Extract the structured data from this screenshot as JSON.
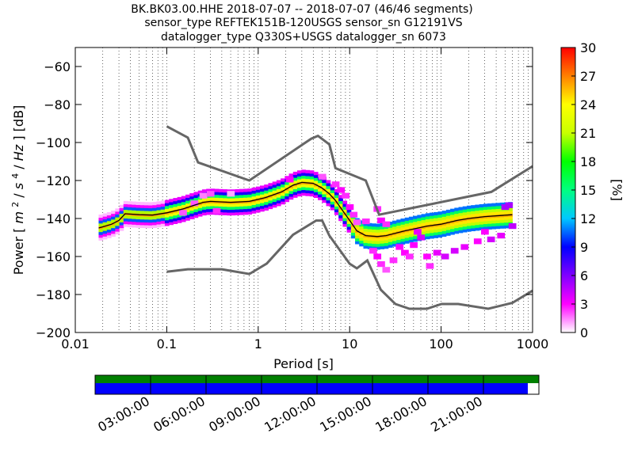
{
  "chart_data": {
    "type": "heatmap",
    "title_lines": [
      "BK.BK03.00.HHE   2018-07-07 -- 2018-07-07  (46/46 segments)",
      "sensor_type REFTEK151B-120USGS sensor_sn G12191VS",
      "datalogger_type Q330S+USGS datalogger_sn 6073"
    ],
    "xlabel": "Period [s]",
    "ylabel_text": "Power",
    "ylabel_unit_parts": [
      "[",
      "m",
      "2",
      "/",
      "s",
      "4",
      "/",
      "Hz",
      "]",
      " [dB]"
    ],
    "xscale": "log",
    "xlim": [
      0.01,
      1000
    ],
    "ylim": [
      -200,
      -50
    ],
    "x_ticks": [
      0.01,
      0.1,
      1,
      10,
      100,
      1000
    ],
    "x_ticklabels": [
      "0.01",
      "0.1",
      "1",
      "10",
      "100",
      "1000"
    ],
    "y_ticks": [
      -200,
      -180,
      -160,
      -140,
      -120,
      -100,
      -80,
      -60
    ],
    "y_ticklabels": [
      "−200",
      "−180",
      "−160",
      "−140",
      "−120",
      "−100",
      "−80",
      "−60"
    ],
    "grid": "dotted vertical at log minor ticks",
    "colorbar": {
      "label": "[%]",
      "range": [
        0,
        30
      ],
      "ticks": [
        0,
        3,
        6,
        9,
        12,
        15,
        18,
        21,
        24,
        27,
        30
      ],
      "ticklabels": [
        "0",
        "3",
        "6",
        "9",
        "12",
        "15",
        "18",
        "21",
        "24",
        "27",
        "30"
      ],
      "colormap": [
        "#ffffff",
        "#ff00ff",
        "#8000ff",
        "#0000ff",
        "#00c8ff",
        "#00ff80",
        "#00ff00",
        "#c8ff00",
        "#ffff00",
        "#ff8000",
        "#ff0000"
      ]
    },
    "noise_model_high": {
      "period": [
        0.1,
        0.17,
        0.22,
        0.8,
        3.8,
        4.5,
        6.0,
        7.0,
        15.0,
        21.0,
        354.0,
        1000.0
      ],
      "power": [
        -91.5,
        -97.4,
        -110.5,
        -120.0,
        -98.0,
        -96.5,
        -101.0,
        -113.5,
        -120.0,
        -138.0,
        -126.0,
        -112.5
      ]
    },
    "noise_model_low": {
      "period": [
        0.1,
        0.17,
        0.4,
        0.8,
        1.24,
        2.4,
        4.3,
        5.0,
        6.0,
        10.0,
        12.0,
        15.6,
        21.9,
        31.6,
        45.0,
        70.0,
        101.0,
        154.0,
        328.0,
        600.0,
        1000.0
      ],
      "power": [
        -168.0,
        -166.7,
        -166.7,
        -169.2,
        -163.7,
        -148.6,
        -141.1,
        -141.1,
        -149.0,
        -163.8,
        -166.2,
        -162.1,
        -177.5,
        -185.0,
        -187.5,
        -187.5,
        -185.0,
        -185.0,
        -187.5,
        -184.4,
        -178.0
      ]
    },
    "median_curve": {
      "period": [
        0.018,
        0.025,
        0.03,
        0.035,
        0.05,
        0.07,
        0.1,
        0.15,
        0.2,
        0.25,
        0.3,
        0.5,
        0.8,
        1.2,
        1.8,
        2.4,
        3.0,
        4.0,
        5.0,
        6.0,
        7.0,
        8.0,
        10.0,
        12.0,
        15.0,
        20.0,
        25.0,
        30.0,
        40.0,
        50.0,
        70.0,
        100.0,
        150.0,
        200.0,
        300.0,
        600.0
      ],
      "power": [
        -145.0,
        -143.0,
        -141.0,
        -137.5,
        -138.0,
        -138.2,
        -137.0,
        -135.0,
        -133.0,
        -131.5,
        -131.0,
        -131.5,
        -131.0,
        -129.0,
        -126.0,
        -122.5,
        -121.0,
        -121.5,
        -124.0,
        -127.0,
        -130.5,
        -134.5,
        -141.0,
        -146.5,
        -149.0,
        -149.5,
        -149.0,
        -148.0,
        -146.5,
        -145.5,
        -144.0,
        -143.0,
        -141.0,
        -140.0,
        -139.0,
        -138.0
      ]
    },
    "scatter_cells": [
      {
        "period": 0.15,
        "power": -137.0,
        "pct": 2.0
      },
      {
        "period": 0.2,
        "power": -132.0,
        "pct": 2.0
      },
      {
        "period": 0.25,
        "power": -128.0,
        "pct": 1.5
      },
      {
        "period": 0.3,
        "power": -127.0,
        "pct": 2.0
      },
      {
        "period": 0.35,
        "power": -136.0,
        "pct": 2.5
      },
      {
        "period": 0.5,
        "power": -127.0,
        "pct": 1.0
      },
      {
        "period": 2.2,
        "power": -119.5,
        "pct": 3.0
      },
      {
        "period": 5.0,
        "power": -118.0,
        "pct": 2.0
      },
      {
        "period": 7.0,
        "power": -122.0,
        "pct": 2.5
      },
      {
        "period": 8.0,
        "power": -125.0,
        "pct": 3.0
      },
      {
        "period": 9.0,
        "power": -128.0,
        "pct": 2.5
      },
      {
        "period": 10.0,
        "power": -134.0,
        "pct": 3.0
      },
      {
        "period": 11.0,
        "power": -138.0,
        "pct": 2.5
      },
      {
        "period": 12.0,
        "power": -142.0,
        "pct": 2.0
      },
      {
        "period": 15.0,
        "power": -141.5,
        "pct": 2.5
      },
      {
        "period": 20.0,
        "power": -135.0,
        "pct": 2.5
      },
      {
        "period": 22.0,
        "power": -141.0,
        "pct": 3.0
      },
      {
        "period": 25.0,
        "power": -143.0,
        "pct": 2.5
      },
      {
        "period": 18.0,
        "power": -157.0,
        "pct": 2.5
      },
      {
        "period": 20.0,
        "power": -160.0,
        "pct": 3.0
      },
      {
        "period": 22.0,
        "power": -164.0,
        "pct": 2.5
      },
      {
        "period": 25.0,
        "power": -167.0,
        "pct": 2.0
      },
      {
        "period": 30.0,
        "power": -162.0,
        "pct": 2.5
      },
      {
        "period": 35.0,
        "power": -155.0,
        "pct": 3.0
      },
      {
        "period": 40.0,
        "power": -158.0,
        "pct": 3.0
      },
      {
        "period": 45.0,
        "power": -160.0,
        "pct": 2.5
      },
      {
        "period": 50.0,
        "power": -154.0,
        "pct": 3.0
      },
      {
        "period": 55.0,
        "power": -147.0,
        "pct": 3.5
      },
      {
        "period": 60.0,
        "power": -150.0,
        "pct": 4.0
      },
      {
        "period": 70.0,
        "power": -160.0,
        "pct": 3.0
      },
      {
        "period": 75.0,
        "power": -165.0,
        "pct": 2.5
      },
      {
        "period": 90.0,
        "power": -158.0,
        "pct": 3.5
      },
      {
        "period": 110.0,
        "power": -160.0,
        "pct": 4.0
      },
      {
        "period": 140.0,
        "power": -157.0,
        "pct": 4.0
      },
      {
        "period": 180.0,
        "power": -155.0,
        "pct": 3.5
      },
      {
        "period": 250.0,
        "power": -152.0,
        "pct": 3.0
      },
      {
        "period": 300.0,
        "power": -147.0,
        "pct": 3.0
      },
      {
        "period": 350.0,
        "power": -151.0,
        "pct": 4.0
      },
      {
        "period": 450.0,
        "power": -149.0,
        "pct": 3.5
      },
      {
        "period": 500.0,
        "power": -134.0,
        "pct": 5.0
      },
      {
        "period": 550.0,
        "power": -133.0,
        "pct": 5.0
      },
      {
        "period": 600.0,
        "power": -144.0,
        "pct": 4.5
      }
    ]
  },
  "timeline": {
    "ticklabels": [
      "03:00:00",
      "06:00:00",
      "09:00:00",
      "12:00:00",
      "15:00:00",
      "18:00:00",
      "21:00:00"
    ],
    "coverage_fraction": 0.975,
    "colors": {
      "top": "#008000",
      "bottom": "#0000ff"
    }
  }
}
